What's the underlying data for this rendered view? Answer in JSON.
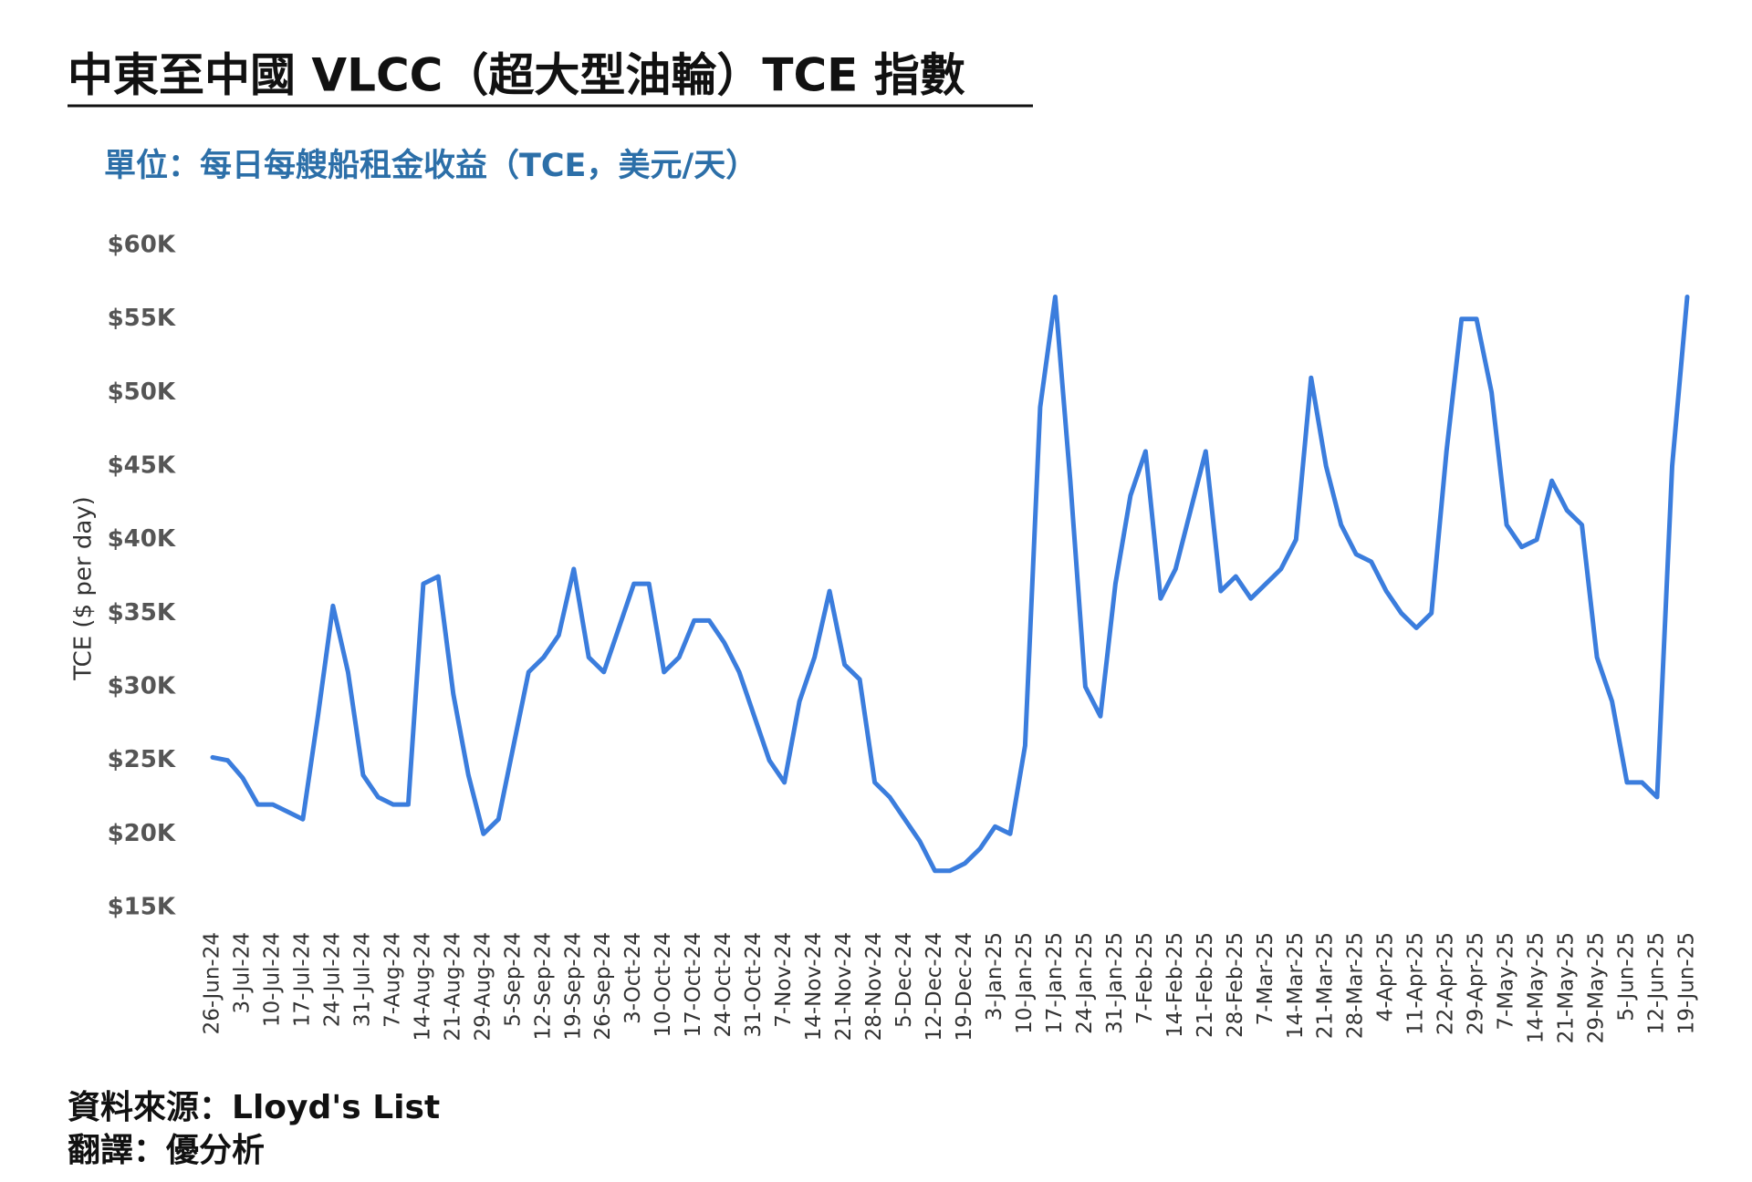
{
  "chart_data": {
    "type": "line",
    "title": "中東至中國 VLCC（超大型油輪）TCE 指數",
    "subtitle": "單位：每日每艘船租金收益（TCE，美元/天）",
    "y_label": "TCE ($ per day)",
    "source": "資料來源：Lloyd's List",
    "translation": "翻譯：優分析",
    "color": "#3b7ddd",
    "ylim": [
      15,
      60
    ],
    "yticks": [
      {
        "value": 15,
        "label": "$15K"
      },
      {
        "value": 20,
        "label": "$20K"
      },
      {
        "value": 25,
        "label": "$25K"
      },
      {
        "value": 30,
        "label": "$30K"
      },
      {
        "value": 35,
        "label": "$35K"
      },
      {
        "value": 40,
        "label": "$40K"
      },
      {
        "value": 45,
        "label": "$45K"
      },
      {
        "value": 50,
        "label": "$50K"
      },
      {
        "value": 55,
        "label": "$55K"
      },
      {
        "value": 60,
        "label": "$60K"
      }
    ],
    "grid": false,
    "categories": [
      "26-Jun-24",
      null,
      "3-Jul-24",
      null,
      "10-Jul-24",
      null,
      "17-Jul-24",
      null,
      "24-Jul-24",
      null,
      "31-Jul-24",
      null,
      "7-Aug-24",
      null,
      "14-Aug-24",
      null,
      "21-Aug-24",
      null,
      "29-Aug-24",
      null,
      "5-Sep-24",
      null,
      "12-Sep-24",
      null,
      "19-Sep-24",
      null,
      "26-Sep-24",
      null,
      "3-Oct-24",
      null,
      "10-Oct-24",
      null,
      "17-Oct-24",
      null,
      "24-Oct-24",
      null,
      "31-Oct-24",
      null,
      "7-Nov-24",
      null,
      "14-Nov-24",
      null,
      "21-Nov-24",
      null,
      "28-Nov-24",
      null,
      "5-Dec-24",
      null,
      "12-Dec-24",
      null,
      "19-Dec-24",
      null,
      "3-Jan-25",
      null,
      "10-Jan-25",
      null,
      "17-Jan-25",
      null,
      "24-Jan-25",
      null,
      "31-Jan-25",
      null,
      "7-Feb-25",
      null,
      "14-Feb-25",
      null,
      "21-Feb-25",
      null,
      "28-Feb-25",
      null,
      "7-Mar-25",
      null,
      "14-Mar-25",
      null,
      "21-Mar-25",
      null,
      "28-Mar-25",
      null,
      "4-Apr-25",
      null,
      "11-Apr-25",
      null,
      "22-Apr-25",
      null,
      "29-Apr-25",
      null,
      "7-May-25",
      null,
      "14-May-25",
      null,
      "21-May-25",
      null,
      "29-May-25",
      null,
      "5-Jun-25",
      null,
      "12-Jun-25",
      null,
      "19-Jun-25"
    ],
    "values": [
      25.2,
      25,
      23.8,
      22,
      22,
      21.5,
      21,
      28,
      35.5,
      31,
      24,
      22.5,
      22,
      22,
      37,
      37.5,
      29.5,
      24,
      20,
      21,
      26,
      31,
      32,
      33.5,
      38,
      32,
      31,
      34,
      37,
      37,
      31,
      32,
      34.5,
      34.5,
      33,
      31,
      28,
      25,
      23.5,
      29,
      32,
      36.5,
      31.5,
      30.5,
      23.5,
      22.5,
      21,
      19.5,
      17.5,
      17.5,
      18,
      19,
      20.5,
      20,
      26,
      49,
      56.5,
      44,
      30,
      28,
      37,
      43,
      46,
      36,
      38,
      42,
      46,
      36.5,
      37.5,
      36,
      37,
      38,
      40,
      51,
      45,
      41,
      39,
      38.5,
      36.5,
      35,
      34,
      35,
      46,
      55,
      55,
      50,
      41,
      39.5,
      40,
      44,
      42,
      41,
      32,
      29,
      23.5,
      23.5,
      22.5,
      45,
      56.5
    ]
  }
}
